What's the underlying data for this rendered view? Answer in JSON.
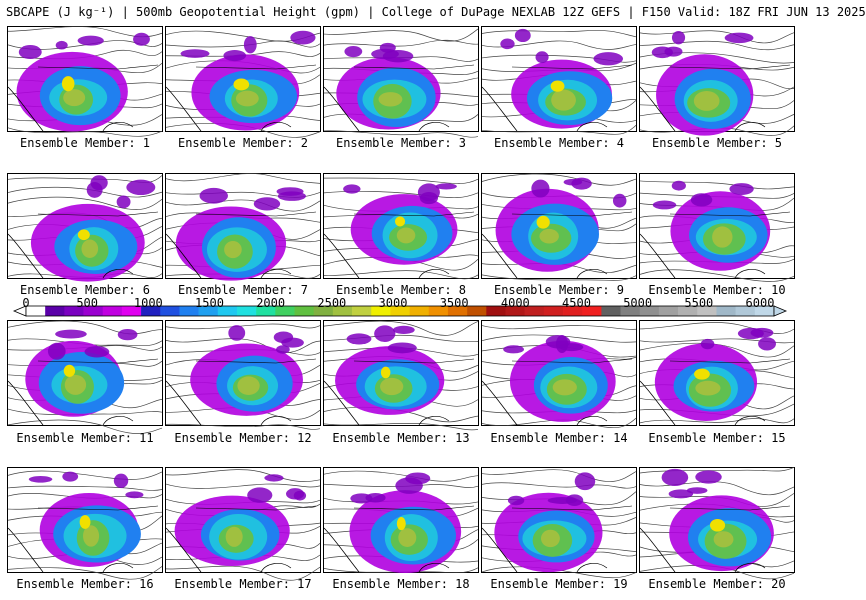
{
  "title": "SBCAPE (J kg⁻¹) | 500mb Geopotential Height (gpm) | College of DuPage NEXLAB 12Z GEFS | F150 Valid: 18Z FRI JUN 13 2025",
  "label_prefix": "Ensemble Member: ",
  "members": [
    1,
    2,
    3,
    4,
    5,
    6,
    7,
    8,
    9,
    10,
    11,
    12,
    13,
    14,
    15,
    16,
    17,
    18,
    19,
    20
  ],
  "colorbar": {
    "ticks": [
      "0",
      "500",
      "1000",
      "1500",
      "2000",
      "2500",
      "3000",
      "3500",
      "4000",
      "4500",
      "5000",
      "5500",
      "6000"
    ],
    "colors": [
      "#ffffff",
      "#5a00a8",
      "#7a00c0",
      "#9a00d0",
      "#c000e0",
      "#e000f0",
      "#2020c0",
      "#2050e0",
      "#2080f0",
      "#20a0f0",
      "#20c8f0",
      "#20e0e0",
      "#20e0a0",
      "#40d060",
      "#60c040",
      "#80b040",
      "#a0c040",
      "#c0d040",
      "#f0f000",
      "#f0d000",
      "#f0b000",
      "#f09000",
      "#e07000",
      "#c05000",
      "#a01010",
      "#b01818",
      "#c02020",
      "#d02020",
      "#e02020",
      "#f02020",
      "#606060",
      "#808080",
      "#909090",
      "#a0a0a0",
      "#b0b0b0",
      "#c0c0c0",
      "#a0b8c8",
      "#b0c8d8",
      "#c0d8e8"
    ]
  }
}
